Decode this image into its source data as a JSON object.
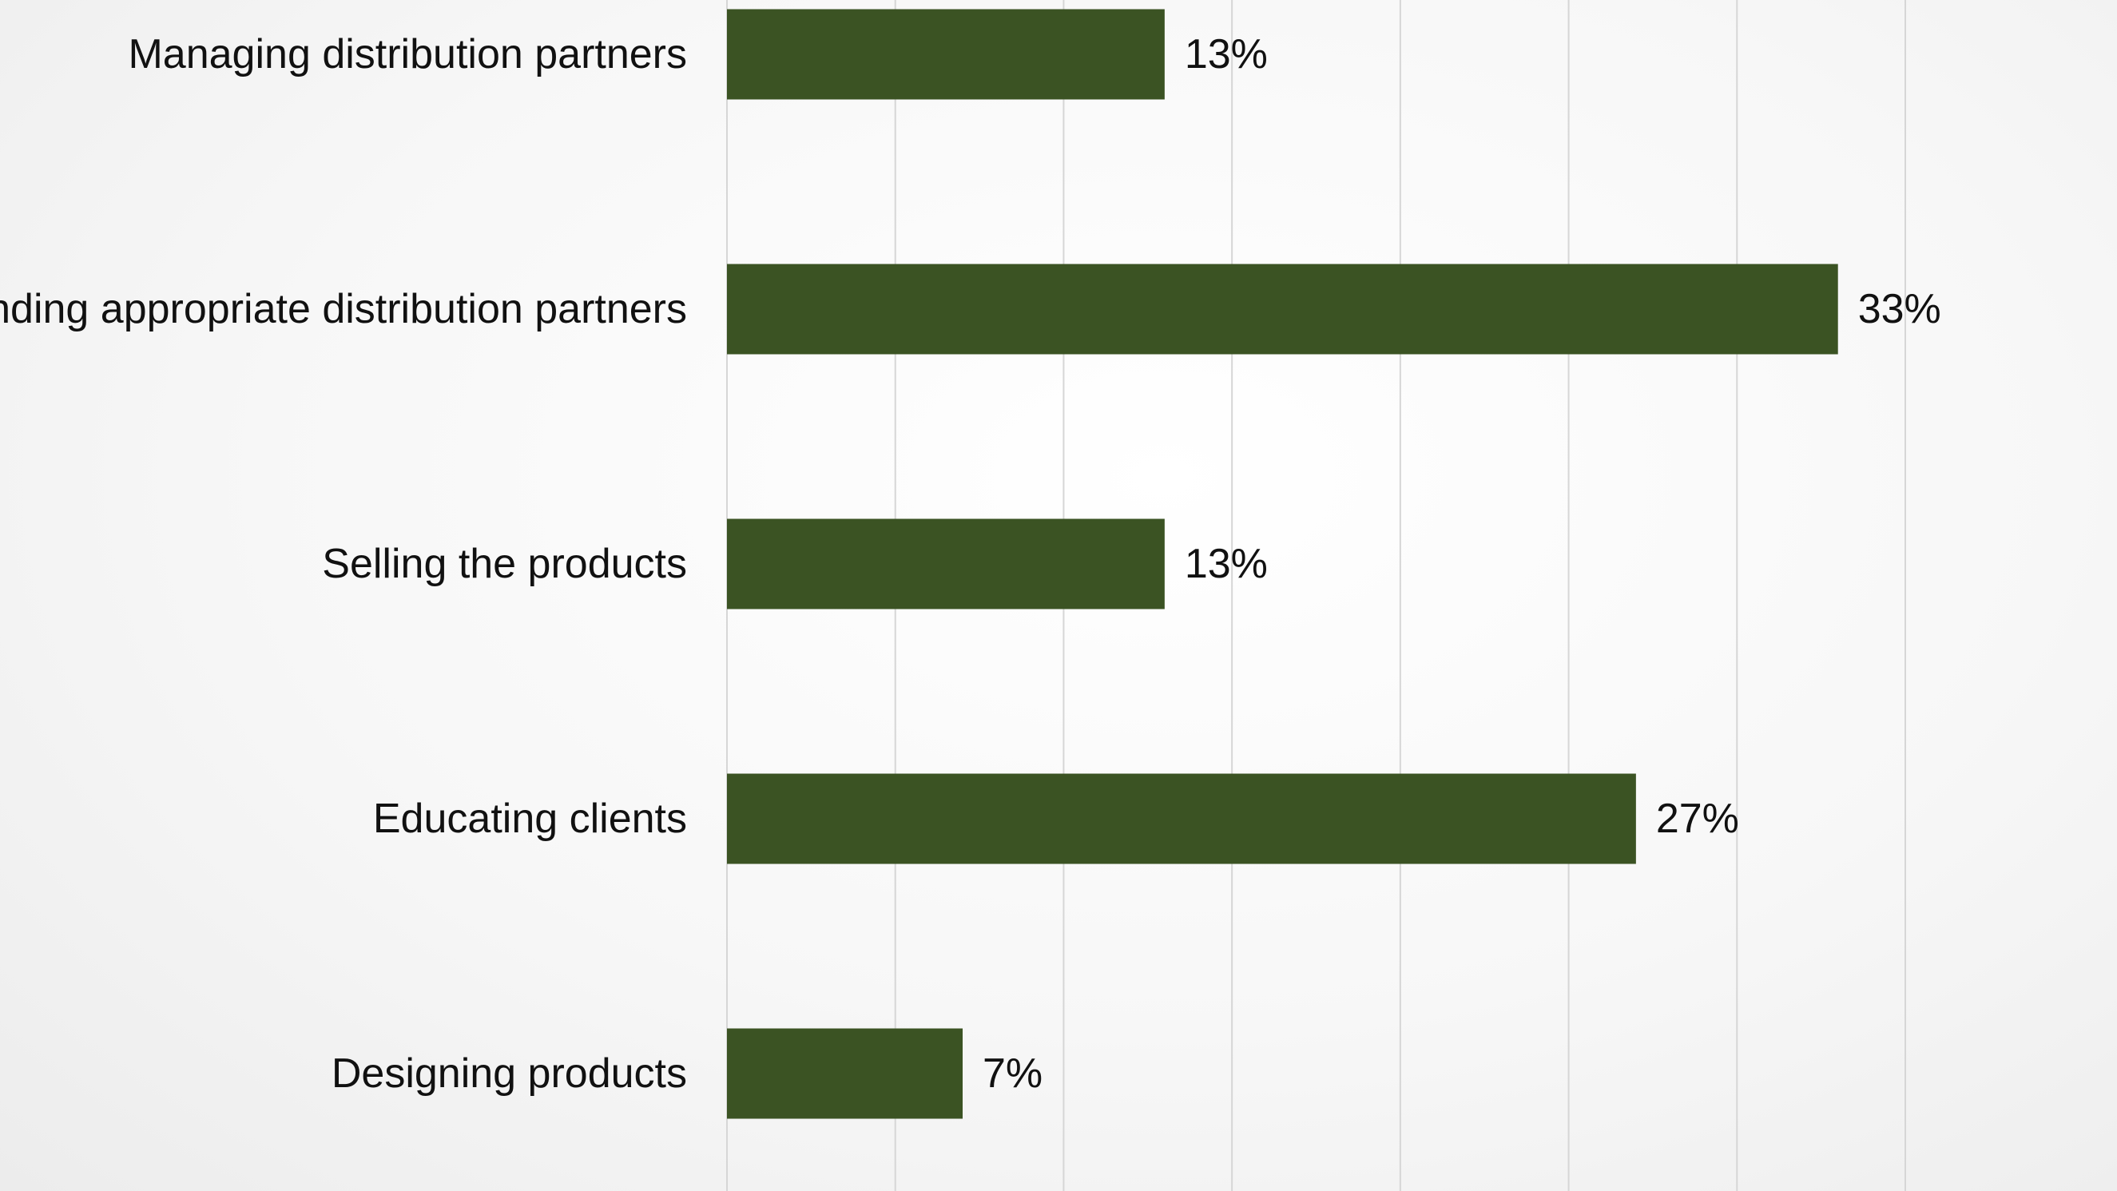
{
  "chart_data": {
    "type": "bar",
    "orientation": "horizontal",
    "categories": [
      "Managing distribution partners",
      "Finding appropriate distribution partners",
      "Selling the products",
      "Educating clients",
      "Designing products"
    ],
    "values": [
      13,
      33,
      13,
      27,
      7
    ],
    "value_labels": [
      "13%",
      "33%",
      "13%",
      "27%",
      "7%"
    ],
    "unit": "%",
    "xlim": [
      0,
      35
    ],
    "grid": true,
    "bar_color": "#3b5323"
  }
}
